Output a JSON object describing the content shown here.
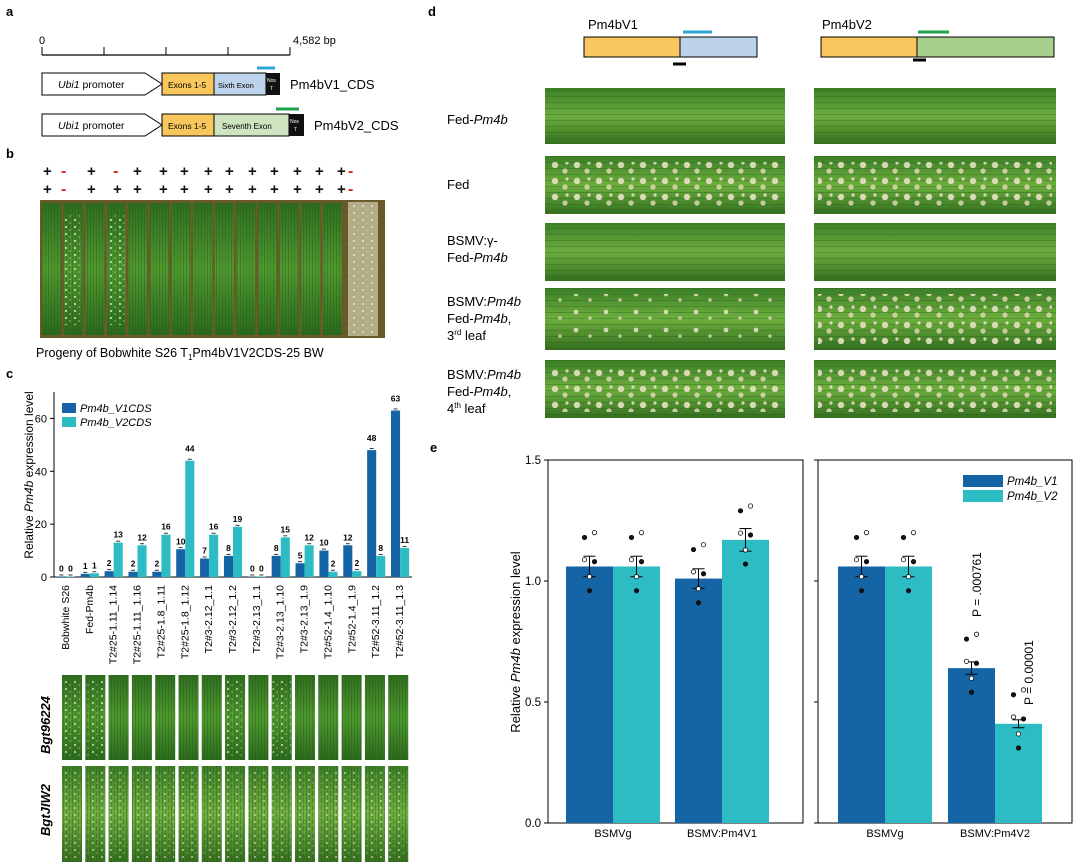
{
  "panels": {
    "a": "a",
    "b": "b",
    "c": "c",
    "d": "d",
    "e": "e"
  },
  "colors": {
    "v1": "#1565a6",
    "v2": "#2dbcc4",
    "exon": "#f7c75d",
    "sixth": "#bdd3ec",
    "seventh": "#a8d08d",
    "barV1line": "#2ba7d8",
    "barV2line": "#1fa34b",
    "minus": "#e0201f"
  },
  "constructs": {
    "scale_start": "0",
    "scale_end": "4,582 bp",
    "rows": [
      {
        "promoter_ital": "Ubi1",
        "promoter_rest": " promoter",
        "exons": "Exons 1-5",
        "last_exon": "Sixth Exon",
        "nos": "Nos T",
        "name": "Pm4bV1_CDS"
      },
      {
        "promoter_ital": "Ubi1",
        "promoter_rest": " promoter",
        "exons": "Exons 1-5",
        "last_exon": "Seventh Exon",
        "nos": "Nos T",
        "name": "Pm4bV2_CDS"
      }
    ]
  },
  "panel_b": {
    "row1": [
      "+",
      "-",
      "+",
      "-",
      "+",
      "+",
      "+",
      "+",
      "+",
      "+",
      "+",
      "+",
      "+",
      "+",
      "-"
    ],
    "row2": [
      "+",
      "-",
      "+",
      "+",
      "+",
      "+",
      "+",
      "+",
      "+",
      "+",
      "+",
      "+",
      "+",
      "+",
      "-"
    ],
    "caption_pre": "Progeny of Bobwhite S26 T",
    "caption_sub": "1",
    "caption_post": "Pm4bV1V2CDS-25 BW"
  },
  "panel_d": {
    "constructs": [
      "Pm4bV1",
      "Pm4bV2"
    ],
    "rows": [
      {
        "line1": "Fed-",
        "line1_ital": "Pm4b",
        "line2": "",
        "line2_ital": "",
        "line3": "",
        "line4": ""
      },
      {
        "line1": "Fed",
        "line1_ital": "",
        "line2": "",
        "line2_ital": "",
        "line3": "",
        "line4": ""
      },
      {
        "line1": "BSMV:γ-",
        "line1_ital": "",
        "line2": "Fed-",
        "line2_ital": "Pm4b",
        "line3": "",
        "line4": ""
      },
      {
        "line1": "BSMV:",
        "line1_ital": "Pm4b",
        "line2": "Fed-",
        "line2_ital": "Pm4b",
        "line3": "3",
        "line3_sup": "rd",
        "line3_post": " leaf",
        "line4": ""
      },
      {
        "line1": "BSMV:",
        "line1_ital": "Pm4b",
        "line2": "Fed-",
        "line2_ital": "Pm4b",
        "line3": "4",
        "line3_sup": "th",
        "line3_post": " leaf",
        "line4": ""
      }
    ]
  },
  "panel_c_images": {
    "row_labels": [
      "Bgt96224",
      "BgtJIW2"
    ]
  },
  "chart_data": [
    {
      "type": "bar",
      "id": "panel-c",
      "title": "",
      "ylabel_pre": "Relative ",
      "ylabel_ital": "Pm4b",
      "ylabel_post": " expression level",
      "ylim": [
        0,
        70
      ],
      "yticks": [
        0,
        20,
        40,
        60
      ],
      "categories": [
        "Bobwhite S26",
        "Fed-Pm4b",
        "T2#25-1.11_1.14",
        "T2#25-1.11_1.16",
        "T2#25-1.8_1.11",
        "T2#25-1.8_1.12",
        "T2#3-2.12_1.1",
        "T2#3-2.12_1.2",
        "T2#3-2.13_1.1",
        "T2#3-2.13_1.10",
        "T2#3-2.13_1.9",
        "T2#52-1.4_1.10",
        "T2#52-1.4_1.9",
        "T2#52-3.11_1.2",
        "T2#52-3.11_1.3"
      ],
      "series": [
        {
          "name": "Pm4b_V1CDS",
          "values": [
            0.2,
            1.2,
            2.2,
            2.0,
            2.0,
            10.5,
            7.0,
            8.0,
            0.2,
            8.0,
            5.2,
            10.0,
            12.0,
            48.0,
            63.0
          ],
          "labels": [
            "0",
            "1",
            "2",
            "2",
            "2",
            "10",
            "7",
            "8",
            "0",
            "8",
            "5",
            "10",
            "12",
            "48",
            "63"
          ]
        },
        {
          "name": "Pm4b_V2CDS",
          "values": [
            0.2,
            1.4,
            13.0,
            12.0,
            16.0,
            44.0,
            16.0,
            19.0,
            0.2,
            15.0,
            12.0,
            2.0,
            2.2,
            8.0,
            11.0
          ],
          "labels": [
            "0",
            "1",
            "13",
            "12",
            "16",
            "44",
            "16",
            "19",
            "0",
            "15",
            "12",
            "2",
            "2",
            "8",
            "11"
          ]
        }
      ],
      "legend": "top-left"
    },
    {
      "type": "bar",
      "id": "panel-e",
      "title": "",
      "ylabel_pre": "Relative ",
      "ylabel_ital": "Pm4b",
      "ylabel_post": " expression level",
      "ylim": [
        0,
        1.5
      ],
      "yticks": [
        "0.0",
        "0.5",
        "1.0",
        "1.5"
      ],
      "groups": [
        {
          "panel": "left",
          "categories": [
            "BSMVg",
            "BSMV:Pm4V1"
          ],
          "Pm4b_V1": [
            1.06,
            1.01
          ],
          "Pm4b_V2": [
            1.06,
            1.17
          ]
        },
        {
          "panel": "right",
          "categories": [
            "BSMVg",
            "BSMV:Pm4V2"
          ],
          "Pm4b_V1": [
            1.06,
            0.64
          ],
          "Pm4b_V2": [
            1.06,
            0.41
          ]
        }
      ],
      "series_names": [
        "Pm4b_V1",
        "Pm4b_V2"
      ],
      "annotations": [
        "P = .000761",
        "P = 0.00001"
      ],
      "legend": "top-right"
    }
  ]
}
